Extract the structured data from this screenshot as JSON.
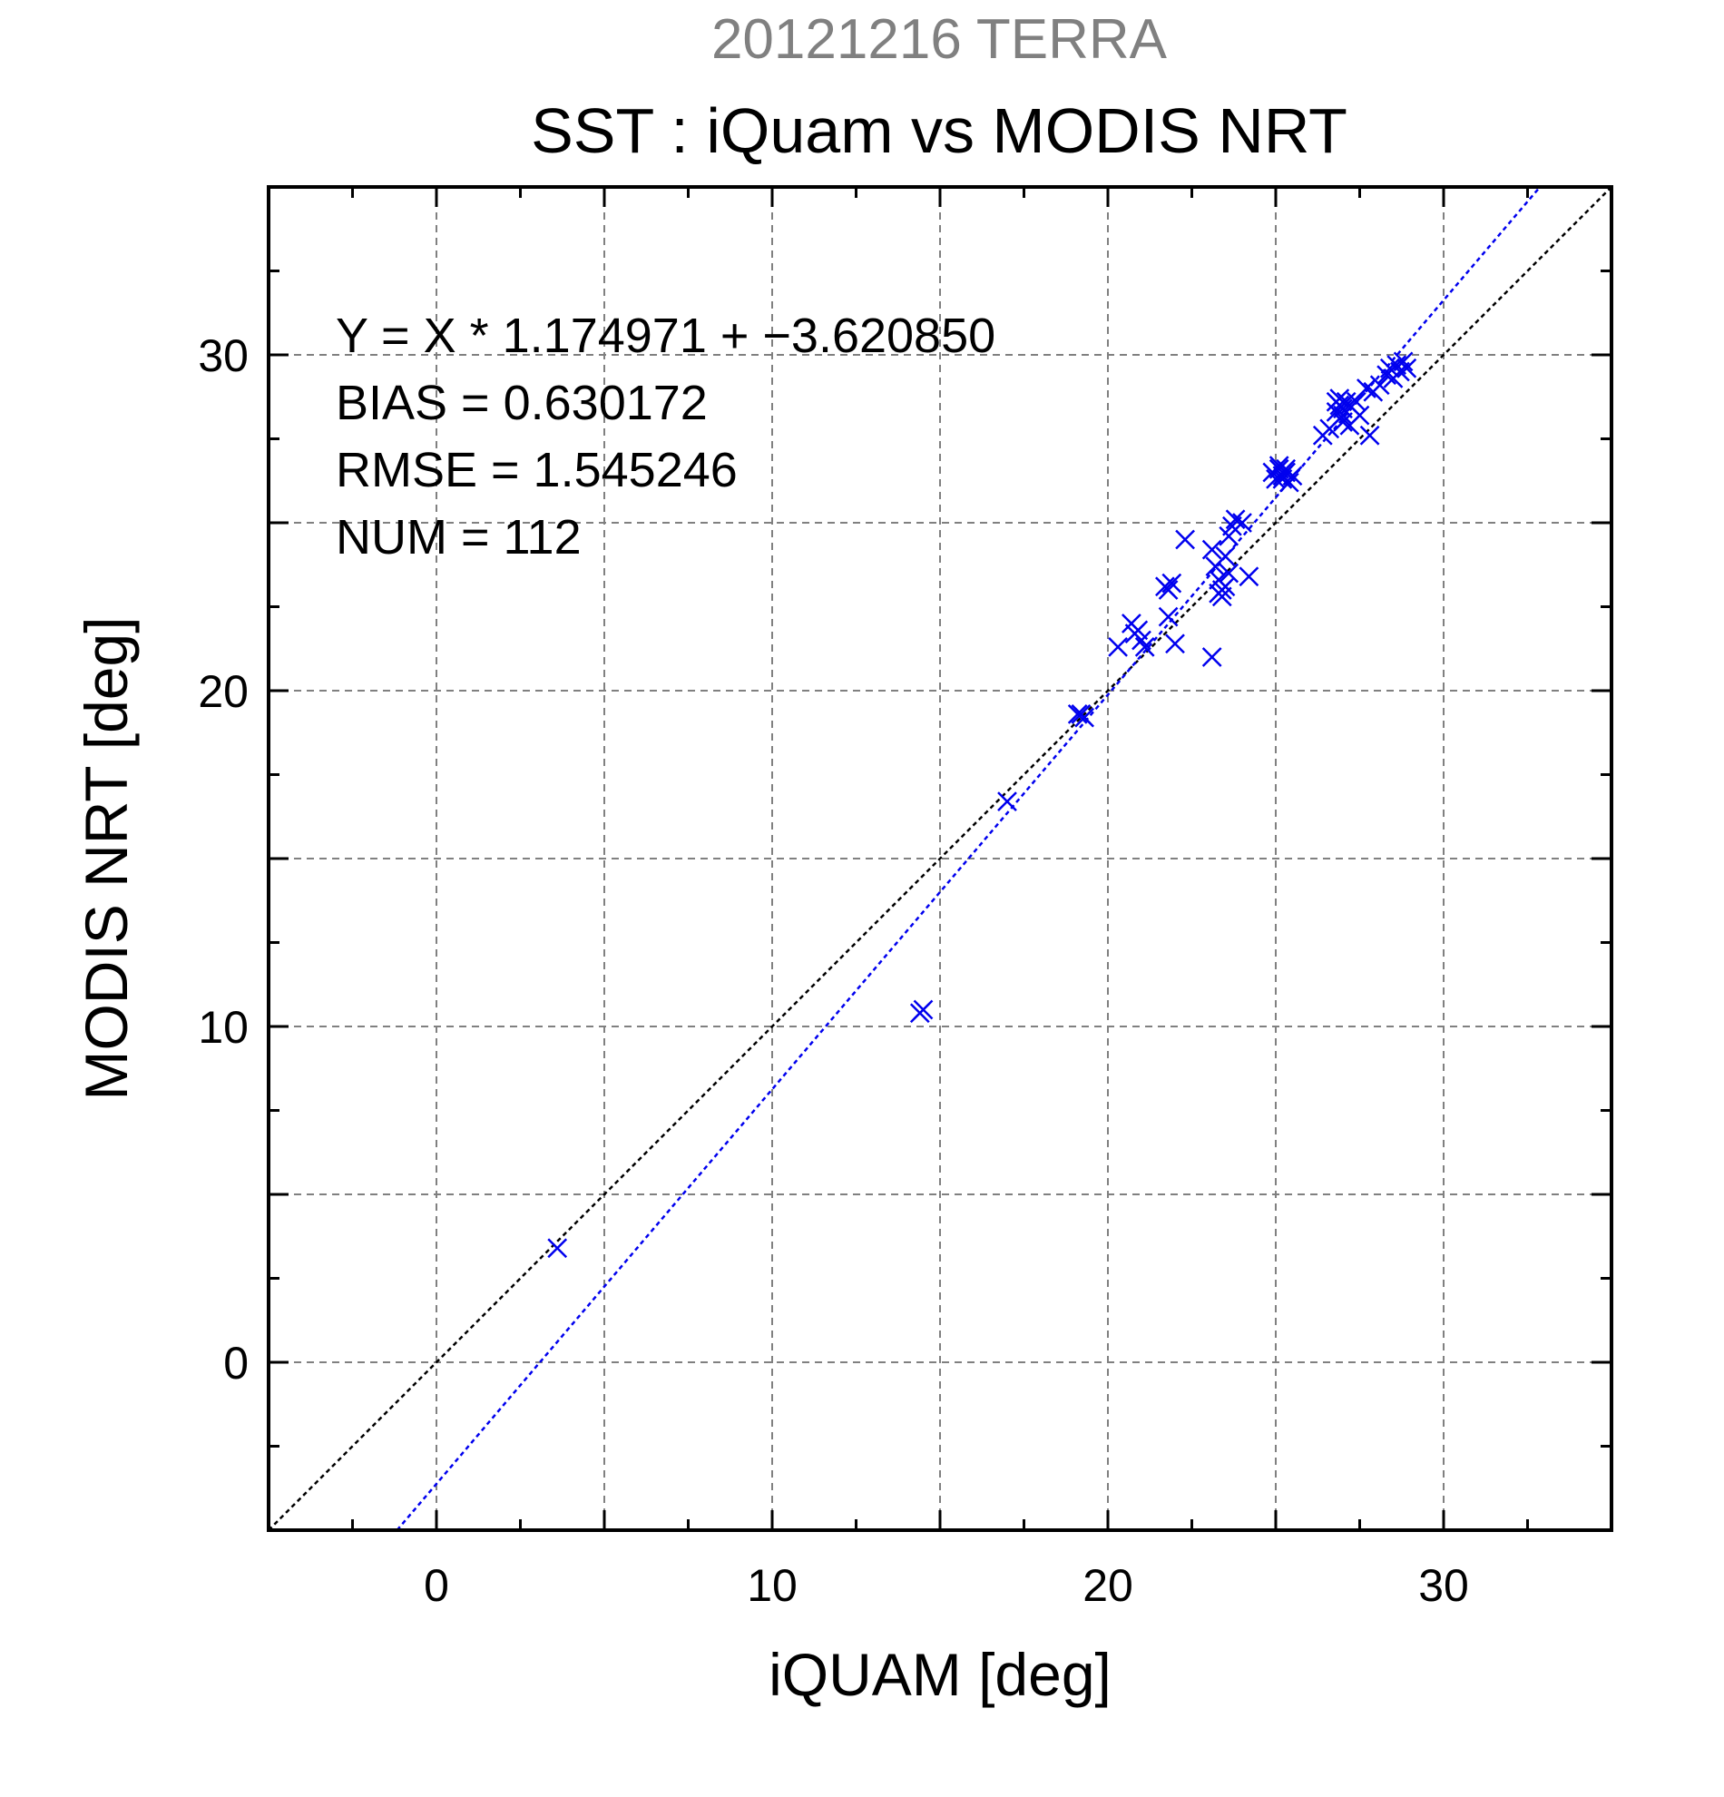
{
  "chart_data": {
    "type": "scatter",
    "date_title": "20121216 TERRA",
    "title": "SST : iQuam vs MODIS NRT",
    "xlabel": "iQUAM [deg]",
    "ylabel": "MODIS NRT [deg]",
    "xlim": [
      -5,
      35
    ],
    "ylim": [
      -5,
      35
    ],
    "xticks": [
      "0",
      "10",
      "20",
      "30"
    ],
    "yticks": [
      "0",
      "10",
      "20",
      "30"
    ],
    "grid": true,
    "stats": [
      "Y = X * 1.174971 + −3.620850",
      "BIAS = 0.630172",
      "RMSE = 1.545246",
      "NUM = 112"
    ],
    "reference_line": {
      "slope": 1,
      "intercept": 0,
      "color": "#000000"
    },
    "fit_line": {
      "slope": 1.174971,
      "intercept": -3.62085,
      "color": "#0000ee"
    },
    "marker_color": "#0000ee",
    "points": [
      [
        3.6,
        3.4
      ],
      [
        14.4,
        10.4
      ],
      [
        14.5,
        10.5
      ],
      [
        17.0,
        16.7
      ],
      [
        19.1,
        19.3
      ],
      [
        19.2,
        19.3
      ],
      [
        19.3,
        19.2
      ],
      [
        20.3,
        21.3
      ],
      [
        20.7,
        22.0
      ],
      [
        20.8,
        21.7
      ],
      [
        20.9,
        21.8
      ],
      [
        21.0,
        21.5
      ],
      [
        21.1,
        21.3
      ],
      [
        21.7,
        23.1
      ],
      [
        21.8,
        23.0
      ],
      [
        21.9,
        23.2
      ],
      [
        21.8,
        22.2
      ],
      [
        22.0,
        21.4
      ],
      [
        22.3,
        24.5
      ],
      [
        23.1,
        21.0
      ],
      [
        23.1,
        24.2
      ],
      [
        23.2,
        23.7
      ],
      [
        23.3,
        23.3
      ],
      [
        23.3,
        22.9
      ],
      [
        23.4,
        22.8
      ],
      [
        23.5,
        23.1
      ],
      [
        23.5,
        24.0
      ],
      [
        23.6,
        23.5
      ],
      [
        23.4,
        23.0
      ],
      [
        23.6,
        24.6
      ],
      [
        23.7,
        24.9
      ],
      [
        23.8,
        25.1
      ],
      [
        24.0,
        25.0
      ],
      [
        24.2,
        23.4
      ],
      [
        24.9,
        26.5
      ],
      [
        25.0,
        26.3
      ],
      [
        25.1,
        26.6
      ],
      [
        25.2,
        26.4
      ],
      [
        25.3,
        26.5
      ],
      [
        25.4,
        26.2
      ],
      [
        25.1,
        26.7
      ],
      [
        25.2,
        26.3
      ],
      [
        25.3,
        26.6
      ],
      [
        25.5,
        26.4
      ],
      [
        26.4,
        27.6
      ],
      [
        26.6,
        27.8
      ],
      [
        26.8,
        28.3
      ],
      [
        26.9,
        28.5
      ],
      [
        26.9,
        28.7
      ],
      [
        27.0,
        28.4
      ],
      [
        27.0,
        28.2
      ],
      [
        27.1,
        28.6
      ],
      [
        26.8,
        28.6
      ],
      [
        27.0,
        28.0
      ],
      [
        27.2,
        28.5
      ],
      [
        27.2,
        27.9
      ],
      [
        27.4,
        28.6
      ],
      [
        27.5,
        28.2
      ],
      [
        27.7,
        29.0
      ],
      [
        27.8,
        27.6
      ],
      [
        27.9,
        28.9
      ],
      [
        28.1,
        29.1
      ],
      [
        28.3,
        29.4
      ],
      [
        28.4,
        29.6
      ],
      [
        28.5,
        29.3
      ],
      [
        28.6,
        29.7
      ],
      [
        28.7,
        29.5
      ],
      [
        28.8,
        29.8
      ],
      [
        28.9,
        29.6
      ]
    ]
  }
}
